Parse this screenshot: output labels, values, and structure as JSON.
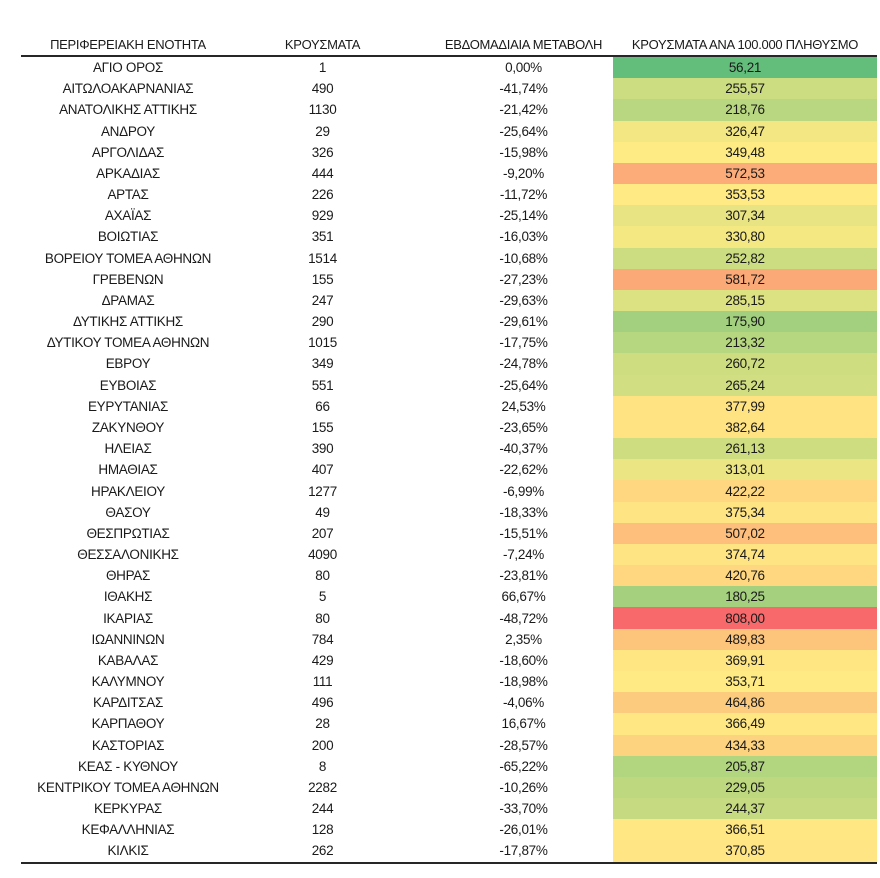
{
  "page": {
    "background": "#FFFFFF",
    "text_color": "#1A1A1A",
    "border_color": "#262626"
  },
  "chart_data": {
    "type": "table",
    "title": "",
    "columns": [
      "ΠΕΡΙΦΕΡΕΙΑΚΗ ΕΝΟΤΗΤΑ",
      "ΚΡΟΥΣΜΑΤΑ",
      "ΕΒΔΟΜΑΔΙΑΙΑ ΜΕΤΑΒΟΛΗ",
      "ΚΡΟΥΣΜΑΤΑ ΑΝΑ 100.000 ΠΛΗΘΥΣΜΟ"
    ],
    "heat_column": "per_100k",
    "heat_scale": {
      "min_color": "#63BE7B",
      "mid_color": "#FFEB84",
      "max_color": "#F8696B",
      "midpoint": "median"
    },
    "rows": [
      {
        "region": "ΑΓΙΟ ΟΡΟΣ",
        "cases": "1",
        "weekly_change": "0,00%",
        "per_100k": "56,21"
      },
      {
        "region": "ΑΙΤΩΛΟΑΚΑΡΝΑΝΙΑΣ",
        "cases": "490",
        "weekly_change": "-41,74%",
        "per_100k": "255,57"
      },
      {
        "region": "ΑΝΑΤΟΛΙΚΗΣ ΑΤΤΙΚΗΣ",
        "cases": "1130",
        "weekly_change": "-21,42%",
        "per_100k": "218,76"
      },
      {
        "region": "ΑΝΔΡΟΥ",
        "cases": "29",
        "weekly_change": "-25,64%",
        "per_100k": "326,47"
      },
      {
        "region": "ΑΡΓΟΛΙΔΑΣ",
        "cases": "326",
        "weekly_change": "-15,98%",
        "per_100k": "349,48"
      },
      {
        "region": "ΑΡΚΑΔΙΑΣ",
        "cases": "444",
        "weekly_change": "-9,20%",
        "per_100k": "572,53"
      },
      {
        "region": "ΑΡΤΑΣ",
        "cases": "226",
        "weekly_change": "-11,72%",
        "per_100k": "353,53"
      },
      {
        "region": "ΑΧΑΪΑΣ",
        "cases": "929",
        "weekly_change": "-25,14%",
        "per_100k": "307,34"
      },
      {
        "region": "ΒΟΙΩΤΙΑΣ",
        "cases": "351",
        "weekly_change": "-16,03%",
        "per_100k": "330,80"
      },
      {
        "region": "ΒΟΡΕΙΟΥ ΤΟΜΕΑ ΑΘΗΝΩΝ",
        "cases": "1514",
        "weekly_change": "-10,68%",
        "per_100k": "252,82"
      },
      {
        "region": "ΓΡΕΒΕΝΩΝ",
        "cases": "155",
        "weekly_change": "-27,23%",
        "per_100k": "581,72"
      },
      {
        "region": "ΔΡΑΜΑΣ",
        "cases": "247",
        "weekly_change": "-29,63%",
        "per_100k": "285,15"
      },
      {
        "region": "ΔΥΤΙΚΗΣ ΑΤΤΙΚΗΣ",
        "cases": "290",
        "weekly_change": "-29,61%",
        "per_100k": "175,90"
      },
      {
        "region": "ΔΥΤΙΚΟΥ ΤΟΜΕΑ ΑΘΗΝΩΝ",
        "cases": "1015",
        "weekly_change": "-17,75%",
        "per_100k": "213,32"
      },
      {
        "region": "ΕΒΡΟΥ",
        "cases": "349",
        "weekly_change": "-24,78%",
        "per_100k": "260,72"
      },
      {
        "region": "ΕΥΒΟΙΑΣ",
        "cases": "551",
        "weekly_change": "-25,64%",
        "per_100k": "265,24"
      },
      {
        "region": "ΕΥΡΥΤΑΝΙΑΣ",
        "cases": "66",
        "weekly_change": "24,53%",
        "per_100k": "377,99"
      },
      {
        "region": "ΖΑΚΥΝΘΟΥ",
        "cases": "155",
        "weekly_change": "-23,65%",
        "per_100k": "382,64"
      },
      {
        "region": "ΗΛΕΙΑΣ",
        "cases": "390",
        "weekly_change": "-40,37%",
        "per_100k": "261,13"
      },
      {
        "region": "ΗΜΑΘΙΑΣ",
        "cases": "407",
        "weekly_change": "-22,62%",
        "per_100k": "313,01"
      },
      {
        "region": "ΗΡΑΚΛΕΙΟΥ",
        "cases": "1277",
        "weekly_change": "-6,99%",
        "per_100k": "422,22"
      },
      {
        "region": "ΘΑΣΟΥ",
        "cases": "49",
        "weekly_change": "-18,33%",
        "per_100k": "375,34"
      },
      {
        "region": "ΘΕΣΠΡΩΤΙΑΣ",
        "cases": "207",
        "weekly_change": "-15,51%",
        "per_100k": "507,02"
      },
      {
        "region": "ΘΕΣΣΑΛΟΝΙΚΗΣ",
        "cases": "4090",
        "weekly_change": "-7,24%",
        "per_100k": "374,74"
      },
      {
        "region": "ΘΗΡΑΣ",
        "cases": "80",
        "weekly_change": "-23,81%",
        "per_100k": "420,76"
      },
      {
        "region": "ΙΘΑΚΗΣ",
        "cases": "5",
        "weekly_change": "66,67%",
        "per_100k": "180,25"
      },
      {
        "region": "ΙΚΑΡΙΑΣ",
        "cases": "80",
        "weekly_change": "-48,72%",
        "per_100k": "808,00"
      },
      {
        "region": "ΙΩΑΝΝΙΝΩΝ",
        "cases": "784",
        "weekly_change": "2,35%",
        "per_100k": "489,83"
      },
      {
        "region": "ΚΑΒΑΛΑΣ",
        "cases": "429",
        "weekly_change": "-18,60%",
        "per_100k": "369,91"
      },
      {
        "region": "ΚΑΛΥΜΝΟΥ",
        "cases": "111",
        "weekly_change": "-18,98%",
        "per_100k": "353,71"
      },
      {
        "region": "ΚΑΡΔΙΤΣΑΣ",
        "cases": "496",
        "weekly_change": "-4,06%",
        "per_100k": "464,86"
      },
      {
        "region": "ΚΑΡΠΑΘΟΥ",
        "cases": "28",
        "weekly_change": "16,67%",
        "per_100k": "366,49"
      },
      {
        "region": "ΚΑΣΤΟΡΙΑΣ",
        "cases": "200",
        "weekly_change": "-28,57%",
        "per_100k": "434,33"
      },
      {
        "region": "ΚΕΑΣ - ΚΥΘΝΟΥ",
        "cases": "8",
        "weekly_change": "-65,22%",
        "per_100k": "205,87"
      },
      {
        "region": "ΚΕΝΤΡΙΚΟΥ ΤΟΜΕΑ ΑΘΗΝΩΝ",
        "cases": "2282",
        "weekly_change": "-10,26%",
        "per_100k": "229,05"
      },
      {
        "region": "ΚΕΡΚΥΡΑΣ",
        "cases": "244",
        "weekly_change": "-33,70%",
        "per_100k": "244,37"
      },
      {
        "region": "ΚΕΦΑΛΛΗΝΙΑΣ",
        "cases": "128",
        "weekly_change": "-26,01%",
        "per_100k": "366,51"
      },
      {
        "region": "ΚΙΛΚΙΣ",
        "cases": "262",
        "weekly_change": "-17,87%",
        "per_100k": "370,85"
      }
    ]
  }
}
